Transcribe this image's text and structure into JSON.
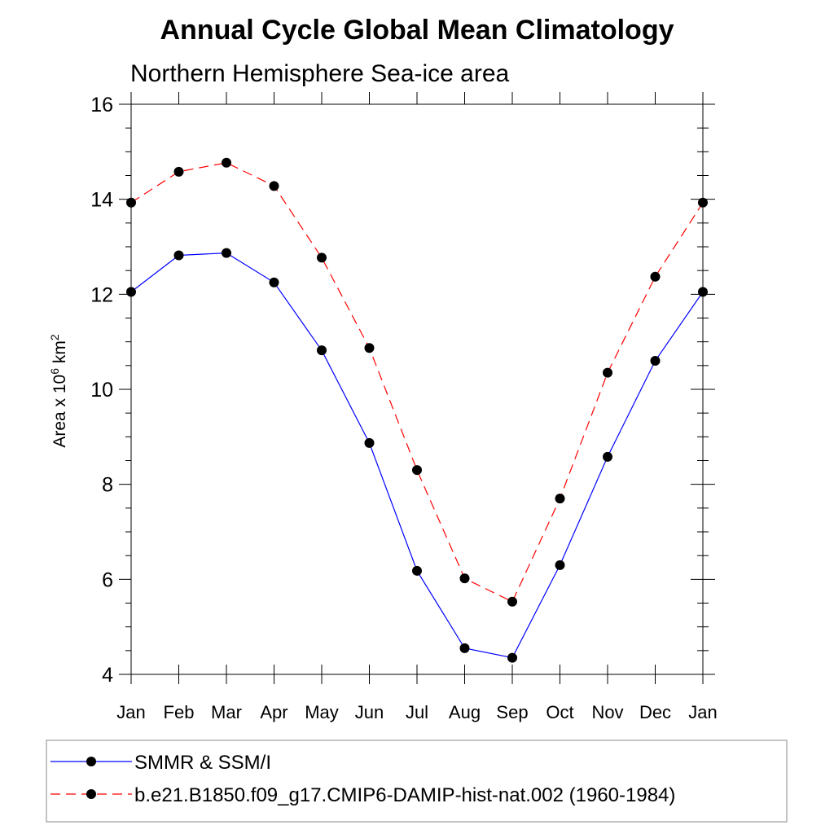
{
  "chart_data": {
    "type": "line",
    "title": "Annual Cycle Global Mean Climatology",
    "subtitle": "Northern Hemisphere Sea-ice area",
    "ylabel": "Area x 10",
    "ylabel_exponent": "6",
    "ylabel_unit": " km",
    "ylabel_unit_exponent": "2",
    "categories": [
      "Jan",
      "Feb",
      "Mar",
      "Apr",
      "May",
      "Jun",
      "Jul",
      "Aug",
      "Sep",
      "Oct",
      "Nov",
      "Dec",
      "Jan"
    ],
    "ylim": [
      4,
      16
    ],
    "yticks": [
      4,
      6,
      8,
      10,
      12,
      14,
      16
    ],
    "ytick_labels": [
      "4",
      "6",
      "8",
      "10",
      "12",
      "14",
      "16"
    ],
    "series": [
      {
        "name": "SMMR & SSM/I",
        "color": "#0000ff",
        "dash": "solid",
        "values": [
          12.05,
          12.82,
          12.87,
          12.25,
          10.82,
          8.87,
          6.18,
          4.55,
          4.35,
          6.3,
          8.58,
          10.6,
          12.05
        ]
      },
      {
        "name": "b.e21.B1850.f09_g17.CMIP6-DAMIP-hist-nat.002 (1960-1984)",
        "color": "#ff0000",
        "dash": "dashed",
        "values": [
          13.93,
          14.58,
          14.77,
          14.28,
          12.77,
          10.87,
          8.3,
          6.02,
          5.53,
          7.7,
          10.35,
          12.37,
          13.93
        ]
      }
    ],
    "legend_position": "bottom",
    "grid": false
  }
}
